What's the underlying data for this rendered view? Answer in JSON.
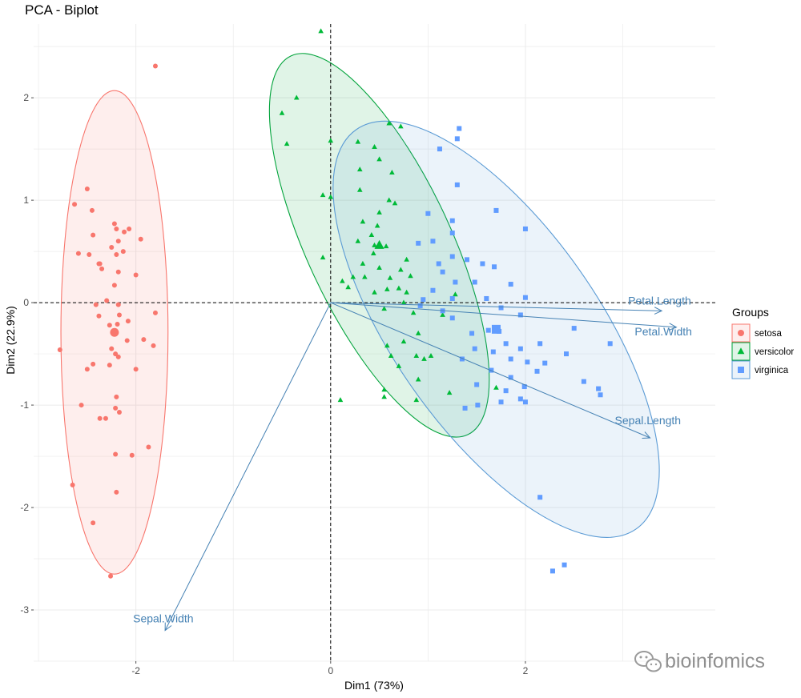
{
  "chart_data": {
    "type": "scatter",
    "title": "PCA - Biplot",
    "xlabel": "Dim1 (73%)",
    "ylabel": "Dim2 (22.9%)",
    "xlim": [
      -3.05,
      3.95
    ],
    "ylim": [
      -3.5,
      2.72
    ],
    "x_ticks": [
      -2,
      0,
      2
    ],
    "y_ticks": [
      -3,
      -2,
      -1,
      0,
      1,
      2
    ],
    "grid": true,
    "legend": {
      "title": "Groups",
      "position": "right"
    },
    "colors": {
      "setosa": "#f8766d",
      "versicolor": "#00ba38",
      "virginica": "#619cff",
      "ellipse_setosa": "#f8766d",
      "ellipse_versicolor": "#00a33a",
      "ellipse_virginica": "#5b9bd5",
      "arrow": "#4682b4",
      "grid": "#ebebeb"
    },
    "series": [
      {
        "name": "setosa",
        "shape": "circle",
        "mean": [
          -2.22,
          -0.29
        ],
        "ellipse": {
          "center": [
            -2.22,
            -0.29
          ],
          "rx": 0.55,
          "ry": 2.36
        },
        "points": [
          [
            -1.8,
            2.31
          ],
          [
            -2.5,
            1.11
          ],
          [
            -2.63,
            0.96
          ],
          [
            -2.45,
            0.9
          ],
          [
            -2.22,
            0.77
          ],
          [
            -2.07,
            0.72
          ],
          [
            -2.2,
            0.72
          ],
          [
            -2.12,
            0.69
          ],
          [
            -2.44,
            0.66
          ],
          [
            -2.18,
            0.6
          ],
          [
            -1.95,
            0.62
          ],
          [
            -2.25,
            0.54
          ],
          [
            -2.59,
            0.48
          ],
          [
            -2.13,
            0.5
          ],
          [
            -2.2,
            0.47
          ],
          [
            -2.38,
            0.38
          ],
          [
            -2.48,
            0.47
          ],
          [
            -2.35,
            0.33
          ],
          [
            -2.18,
            0.3
          ],
          [
            -2.37,
            0.38
          ],
          [
            -2.0,
            0.27
          ],
          [
            -2.22,
            0.17
          ],
          [
            -2.3,
            0.02
          ],
          [
            -2.18,
            -0.02
          ],
          [
            -2.41,
            -0.02
          ],
          [
            -1.8,
            -0.1
          ],
          [
            -2.17,
            -0.12
          ],
          [
            -2.38,
            -0.13
          ],
          [
            -2.08,
            -0.18
          ],
          [
            -2.19,
            -0.21
          ],
          [
            -2.27,
            -0.22
          ],
          [
            -2.22,
            -0.29
          ],
          [
            -1.92,
            -0.36
          ],
          [
            -2.09,
            -0.37
          ],
          [
            -2.78,
            -0.46
          ],
          [
            -2.25,
            -0.45
          ],
          [
            -1.82,
            -0.42
          ],
          [
            -2.21,
            -0.5
          ],
          [
            -2.18,
            -0.53
          ],
          [
            -2.44,
            -0.6
          ],
          [
            -2.27,
            -0.61
          ],
          [
            -2.0,
            -0.65
          ],
          [
            -2.5,
            -0.65
          ],
          [
            -2.2,
            -0.92
          ],
          [
            -2.56,
            -1.0
          ],
          [
            -2.21,
            -1.03
          ],
          [
            -2.31,
            -1.13
          ],
          [
            -2.37,
            -1.13
          ],
          [
            -2.17,
            -1.07
          ],
          [
            -1.87,
            -1.41
          ],
          [
            -2.21,
            -1.48
          ],
          [
            -2.04,
            -1.49
          ],
          [
            -2.65,
            -1.78
          ],
          [
            -2.2,
            -1.85
          ],
          [
            -2.44,
            -2.15
          ],
          [
            -2.26,
            -2.67
          ]
        ]
      },
      {
        "name": "versicolor",
        "shape": "triangle",
        "mean": [
          0.5,
          0.56
        ],
        "ellipse": {
          "center": [
            0.5,
            0.56
          ],
          "rx": 0.74,
          "ry": 2.04,
          "angle": -25
        },
        "points": [
          [
            -0.1,
            2.65
          ],
          [
            -0.35,
            2.0
          ],
          [
            -0.5,
            1.85
          ],
          [
            -0.45,
            1.55
          ],
          [
            0.28,
            1.57
          ],
          [
            0.6,
            1.75
          ],
          [
            0.72,
            1.72
          ],
          [
            0.45,
            1.52
          ],
          [
            0.0,
            1.58
          ],
          [
            0.5,
            1.4
          ],
          [
            0.3,
            1.3
          ],
          [
            0.63,
            1.27
          ],
          [
            0.0,
            1.03
          ],
          [
            -0.08,
            1.05
          ],
          [
            0.6,
            1.0
          ],
          [
            0.66,
            0.97
          ],
          [
            0.3,
            1.1
          ],
          [
            0.5,
            0.88
          ],
          [
            0.33,
            0.79
          ],
          [
            0.48,
            0.75
          ],
          [
            0.42,
            0.66
          ],
          [
            0.28,
            0.6
          ],
          [
            0.45,
            0.56
          ],
          [
            0.57,
            0.55
          ],
          [
            0.44,
            0.48
          ],
          [
            0.78,
            0.42
          ],
          [
            0.33,
            0.38
          ],
          [
            0.5,
            0.34
          ],
          [
            -0.08,
            0.44
          ],
          [
            0.72,
            0.32
          ],
          [
            0.23,
            0.25
          ],
          [
            0.35,
            0.25
          ],
          [
            0.61,
            0.24
          ],
          [
            0.82,
            0.26
          ],
          [
            0.12,
            0.21
          ],
          [
            0.18,
            0.15
          ],
          [
            0.45,
            0.1
          ],
          [
            0.7,
            0.14
          ],
          [
            0.58,
            0.13
          ],
          [
            0.78,
            0.1
          ],
          [
            1.28,
            0.08
          ],
          [
            0.75,
            0.0
          ],
          [
            0.55,
            -0.06
          ],
          [
            0.85,
            -0.1
          ],
          [
            1.15,
            -0.12
          ],
          [
            0.9,
            -0.3
          ],
          [
            0.75,
            -0.38
          ],
          [
            0.58,
            -0.42
          ],
          [
            0.62,
            -0.52
          ],
          [
            0.88,
            -0.52
          ],
          [
            1.03,
            -0.52
          ],
          [
            0.7,
            -0.62
          ],
          [
            0.9,
            -0.75
          ],
          [
            0.96,
            -0.55
          ],
          [
            0.88,
            -0.95
          ],
          [
            0.55,
            -0.85
          ],
          [
            1.22,
            -0.88
          ],
          [
            1.7,
            -0.83
          ],
          [
            0.55,
            -0.92
          ],
          [
            0.1,
            -0.95
          ]
        ]
      },
      {
        "name": "virginica",
        "shape": "square",
        "mean": [
          1.7,
          -0.26
        ],
        "ellipse": {
          "center": [
            1.7,
            -0.26
          ],
          "rx": 1.05,
          "ry": 2.38,
          "angle": -35
        },
        "points": [
          [
            1.32,
            1.7
          ],
          [
            1.3,
            1.6
          ],
          [
            1.12,
            1.5
          ],
          [
            1.3,
            1.15
          ],
          [
            1.25,
            0.8
          ],
          [
            1.0,
            0.87
          ],
          [
            1.7,
            0.9
          ],
          [
            2.0,
            0.72
          ],
          [
            1.25,
            0.68
          ],
          [
            1.05,
            0.6
          ],
          [
            0.9,
            0.58
          ],
          [
            1.25,
            0.45
          ],
          [
            1.4,
            0.42
          ],
          [
            1.56,
            0.38
          ],
          [
            1.68,
            0.35
          ],
          [
            1.11,
            0.38
          ],
          [
            1.15,
            0.3
          ],
          [
            1.28,
            0.2
          ],
          [
            1.48,
            0.2
          ],
          [
            1.05,
            0.12
          ],
          [
            1.85,
            0.18
          ],
          [
            2.0,
            0.05
          ],
          [
            0.95,
            0.03
          ],
          [
            1.25,
            0.04
          ],
          [
            1.6,
            0.04
          ],
          [
            1.75,
            -0.05
          ],
          [
            0.92,
            -0.03
          ],
          [
            1.15,
            -0.08
          ],
          [
            1.25,
            -0.15
          ],
          [
            1.95,
            -0.12
          ],
          [
            1.73,
            -0.28
          ],
          [
            1.62,
            -0.27
          ],
          [
            1.45,
            -0.3
          ],
          [
            1.48,
            -0.45
          ],
          [
            1.67,
            -0.48
          ],
          [
            1.8,
            -0.4
          ],
          [
            2.15,
            -0.4
          ],
          [
            1.35,
            -0.55
          ],
          [
            1.85,
            -0.55
          ],
          [
            2.42,
            -0.5
          ],
          [
            2.5,
            -0.25
          ],
          [
            2.87,
            -0.4
          ],
          [
            1.95,
            -0.45
          ],
          [
            2.02,
            -0.58
          ],
          [
            1.99,
            -0.82
          ],
          [
            2.2,
            -0.59
          ],
          [
            2.12,
            -0.67
          ],
          [
            1.65,
            -0.66
          ],
          [
            1.85,
            -0.73
          ],
          [
            2.6,
            -0.77
          ],
          [
            1.5,
            -0.8
          ],
          [
            1.8,
            -0.86
          ],
          [
            2.75,
            -0.84
          ],
          [
            2.77,
            -0.9
          ],
          [
            1.95,
            -0.94
          ],
          [
            2.0,
            -0.97
          ],
          [
            1.51,
            -1.0
          ],
          [
            1.75,
            -0.97
          ],
          [
            1.38,
            -1.03
          ],
          [
            2.15,
            -1.9
          ],
          [
            2.28,
            -2.62
          ],
          [
            2.4,
            -2.56
          ]
        ]
      }
    ],
    "vectors": [
      {
        "label": "Petal.Length",
        "end": [
          3.4,
          -0.08
        ]
      },
      {
        "label": "Petal.Width",
        "end": [
          3.55,
          -0.24
        ]
      },
      {
        "label": "Sepal.Length",
        "end": [
          3.28,
          -1.32
        ]
      },
      {
        "label": "Sepal.Width",
        "end": [
          -1.7,
          -3.2
        ]
      }
    ]
  },
  "watermark": {
    "text": "bioinfomics"
  }
}
